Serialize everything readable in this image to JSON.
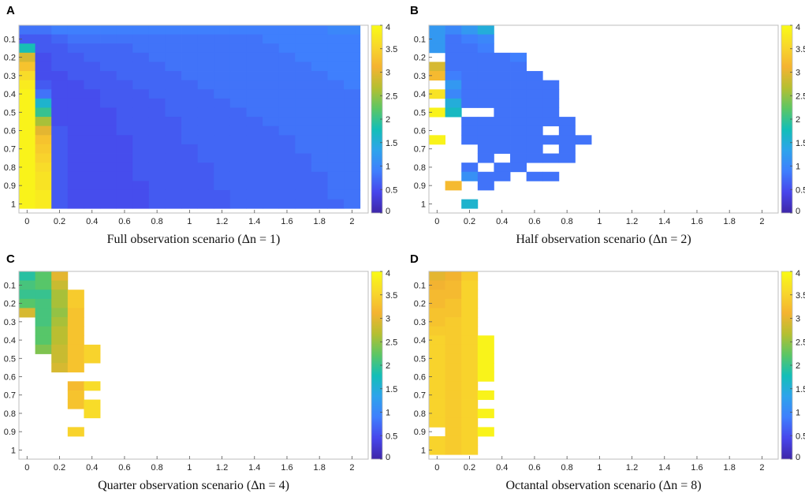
{
  "figure": {
    "colormap": [
      "#3e26a8",
      "#4746eb",
      "#3f7efd",
      "#2ea3ec",
      "#13beb8",
      "#5bc665",
      "#b5bf31",
      "#f4b331",
      "#f8d82b",
      "#f9fb15"
    ],
    "missing_color": "#ffffff"
  },
  "chart_data": [
    {
      "type": "heatmap",
      "panel": "A",
      "caption": "Full observation scenario (Δn = 1)",
      "x_ticks": [
        "0",
        "0.2",
        "0.4",
        "0.6",
        "0.8",
        "1",
        "1.2",
        "1.4",
        "1.6",
        "1.8",
        "2"
      ],
      "y_ticks": [
        "0.1",
        "0.2",
        "0.3",
        "0.4",
        "0.5",
        "0.6",
        "0.7",
        "0.8",
        "0.9",
        "1"
      ],
      "colorbar_ticks": [
        "0",
        "0.5",
        "1",
        "1.5",
        "2",
        "2.5",
        "3",
        "3.5",
        "4"
      ],
      "clim": [
        0,
        4
      ],
      "x_range": [
        -0.05,
        2.1
      ],
      "y_range": [
        0.025,
        1.05
      ],
      "cell_width": 0.1,
      "cell_height": 0.05,
      "x_centers": [
        0,
        0.1,
        0.2,
        0.3,
        0.4,
        0.5,
        0.6,
        0.7,
        0.8,
        0.9,
        1.0,
        1.1,
        1.2,
        1.3,
        1.4,
        1.5,
        1.6,
        1.7,
        1.8,
        1.9,
        2.0
      ],
      "y_centers": [
        0.05,
        0.1,
        0.15,
        0.2,
        0.25,
        0.3,
        0.35,
        0.4,
        0.45,
        0.5,
        0.55,
        0.6,
        0.65,
        0.7,
        0.75,
        0.8,
        0.85,
        0.9,
        0.95,
        1.0
      ],
      "values": [
        [
          0.8,
          0.8,
          0.9,
          0.9,
          0.9,
          0.9,
          0.9,
          0.9,
          0.9,
          0.9,
          0.9,
          0.9,
          0.9,
          0.9,
          0.9,
          0.9,
          0.9,
          0.9,
          0.9,
          1.0,
          1.0
        ],
        [
          0.6,
          0.6,
          0.7,
          0.8,
          0.8,
          0.8,
          0.8,
          0.8,
          0.8,
          0.8,
          0.8,
          0.8,
          0.8,
          0.8,
          0.8,
          0.9,
          0.9,
          0.9,
          0.9,
          0.9,
          0.9
        ],
        [
          1.8,
          0.6,
          0.6,
          0.7,
          0.7,
          0.7,
          0.7,
          0.8,
          0.8,
          0.8,
          0.8,
          0.8,
          0.8,
          0.8,
          0.8,
          0.8,
          0.9,
          0.9,
          0.9,
          0.9,
          0.9
        ],
        [
          2.9,
          0.5,
          0.6,
          0.6,
          0.7,
          0.7,
          0.7,
          0.7,
          0.8,
          0.8,
          0.8,
          0.8,
          0.8,
          0.8,
          0.8,
          0.8,
          0.8,
          0.9,
          0.9,
          0.9,
          0.9
        ],
        [
          3.3,
          0.5,
          0.6,
          0.6,
          0.6,
          0.7,
          0.7,
          0.7,
          0.7,
          0.8,
          0.8,
          0.8,
          0.8,
          0.8,
          0.8,
          0.8,
          0.8,
          0.8,
          0.9,
          0.9,
          0.9
        ],
        [
          3.6,
          0.5,
          0.5,
          0.6,
          0.6,
          0.6,
          0.7,
          0.7,
          0.7,
          0.7,
          0.8,
          0.8,
          0.8,
          0.8,
          0.8,
          0.8,
          0.8,
          0.8,
          0.8,
          0.9,
          0.9
        ],
        [
          3.8,
          0.6,
          0.5,
          0.5,
          0.6,
          0.6,
          0.6,
          0.7,
          0.7,
          0.7,
          0.7,
          0.8,
          0.8,
          0.8,
          0.8,
          0.8,
          0.8,
          0.8,
          0.8,
          0.8,
          0.9
        ],
        [
          3.9,
          0.8,
          0.5,
          0.5,
          0.5,
          0.6,
          0.6,
          0.6,
          0.7,
          0.7,
          0.7,
          0.7,
          0.8,
          0.8,
          0.8,
          0.8,
          0.8,
          0.8,
          0.8,
          0.8,
          0.8
        ],
        [
          3.9,
          1.6,
          0.5,
          0.5,
          0.5,
          0.6,
          0.6,
          0.6,
          0.6,
          0.7,
          0.7,
          0.7,
          0.7,
          0.8,
          0.8,
          0.8,
          0.8,
          0.8,
          0.8,
          0.8,
          0.8
        ],
        [
          3.9,
          2.0,
          0.5,
          0.5,
          0.5,
          0.5,
          0.6,
          0.6,
          0.6,
          0.7,
          0.7,
          0.7,
          0.7,
          0.7,
          0.8,
          0.8,
          0.8,
          0.8,
          0.8,
          0.8,
          0.8
        ],
        [
          3.9,
          2.6,
          0.5,
          0.5,
          0.5,
          0.5,
          0.6,
          0.6,
          0.6,
          0.6,
          0.7,
          0.7,
          0.7,
          0.7,
          0.7,
          0.8,
          0.8,
          0.8,
          0.8,
          0.8,
          0.8
        ],
        [
          3.9,
          3.0,
          0.6,
          0.5,
          0.5,
          0.5,
          0.6,
          0.6,
          0.6,
          0.6,
          0.7,
          0.7,
          0.7,
          0.7,
          0.7,
          0.7,
          0.8,
          0.8,
          0.8,
          0.8,
          0.8
        ],
        [
          3.9,
          3.3,
          0.6,
          0.5,
          0.5,
          0.5,
          0.5,
          0.6,
          0.6,
          0.6,
          0.7,
          0.7,
          0.7,
          0.7,
          0.7,
          0.7,
          0.7,
          0.8,
          0.8,
          0.8,
          0.8
        ],
        [
          3.9,
          3.4,
          0.6,
          0.5,
          0.5,
          0.5,
          0.5,
          0.6,
          0.6,
          0.6,
          0.6,
          0.7,
          0.7,
          0.7,
          0.7,
          0.7,
          0.7,
          0.8,
          0.8,
          0.8,
          0.8
        ],
        [
          3.9,
          3.5,
          0.6,
          0.5,
          0.5,
          0.5,
          0.5,
          0.6,
          0.6,
          0.6,
          0.6,
          0.7,
          0.7,
          0.7,
          0.7,
          0.7,
          0.7,
          0.7,
          0.8,
          0.8,
          0.8
        ],
        [
          3.9,
          3.6,
          0.6,
          0.5,
          0.5,
          0.5,
          0.5,
          0.6,
          0.6,
          0.6,
          0.6,
          0.6,
          0.7,
          0.7,
          0.7,
          0.7,
          0.7,
          0.7,
          0.8,
          0.8,
          0.8
        ],
        [
          3.9,
          3.7,
          0.6,
          0.5,
          0.5,
          0.5,
          0.5,
          0.6,
          0.6,
          0.6,
          0.6,
          0.6,
          0.7,
          0.7,
          0.7,
          0.7,
          0.7,
          0.7,
          0.7,
          0.8,
          0.8
        ],
        [
          3.9,
          3.7,
          0.6,
          0.5,
          0.5,
          0.5,
          0.5,
          0.5,
          0.6,
          0.6,
          0.6,
          0.6,
          0.7,
          0.7,
          0.7,
          0.7,
          0.7,
          0.7,
          0.7,
          0.8,
          0.8
        ],
        [
          3.9,
          3.8,
          0.6,
          0.5,
          0.5,
          0.5,
          0.5,
          0.5,
          0.6,
          0.6,
          0.6,
          0.6,
          0.6,
          0.7,
          0.7,
          0.7,
          0.7,
          0.7,
          0.7,
          0.8,
          0.8
        ],
        [
          3.9,
          3.8,
          0.6,
          0.5,
          0.5,
          0.5,
          0.5,
          0.5,
          0.6,
          0.6,
          0.6,
          0.6,
          0.6,
          0.7,
          0.7,
          0.7,
          0.7,
          0.7,
          0.7,
          0.7,
          0.8
        ]
      ]
    },
    {
      "type": "heatmap",
      "panel": "B",
      "caption": "Half observation scenario (Δn = 2)",
      "x_ticks": [
        "0",
        "0.2",
        "0.4",
        "0.6",
        "0.8",
        "1",
        "1.2",
        "1.4",
        "1.6",
        "1.8",
        "2"
      ],
      "y_ticks": [
        "0.1",
        "0.2",
        "0.3",
        "0.4",
        "0.5",
        "0.6",
        "0.7",
        "0.8",
        "0.9",
        "1"
      ],
      "colorbar_ticks": [
        "0",
        "0.5",
        "1",
        "1.5",
        "2",
        "2.5",
        "3",
        "3.5",
        "4"
      ],
      "clim": [
        0,
        4
      ],
      "x_range": [
        -0.05,
        2.1
      ],
      "y_range": [
        0.025,
        1.05
      ],
      "cell_width": 0.1,
      "cell_height": 0.05,
      "x_centers": [
        0,
        0.1,
        0.2,
        0.3,
        0.4,
        0.5,
        0.6,
        0.7,
        0.8,
        0.9
      ],
      "y_centers": [
        0.05,
        0.1,
        0.15,
        0.2,
        0.25,
        0.3,
        0.35,
        0.4,
        0.45,
        0.5,
        0.55,
        0.6,
        0.65,
        0.7,
        0.75,
        0.8,
        0.85,
        0.9,
        0.95,
        1.0
      ],
      "values": [
        [
          1.2,
          1.0,
          1.2,
          1.5,
          null,
          null,
          null,
          null,
          null,
          null
        ],
        [
          1.2,
          0.8,
          0.9,
          1.0,
          null,
          null,
          null,
          null,
          null,
          null
        ],
        [
          1.2,
          0.8,
          0.8,
          0.9,
          null,
          null,
          null,
          null,
          null,
          null
        ],
        [
          null,
          0.8,
          0.8,
          0.8,
          0.8,
          0.9,
          null,
          null,
          null,
          null
        ],
        [
          2.9,
          0.8,
          0.8,
          0.8,
          0.8,
          0.8,
          null,
          null,
          null,
          null
        ],
        [
          3.2,
          0.9,
          0.8,
          0.8,
          0.8,
          0.8,
          0.8,
          null,
          null,
          null
        ],
        [
          null,
          1.2,
          0.8,
          0.8,
          0.8,
          0.8,
          0.8,
          0.8,
          null,
          null
        ],
        [
          3.7,
          1.0,
          0.8,
          0.8,
          0.8,
          0.8,
          0.8,
          0.8,
          null,
          null
        ],
        [
          null,
          1.5,
          0.8,
          0.8,
          0.8,
          0.8,
          0.8,
          0.8,
          null,
          null
        ],
        [
          3.9,
          1.7,
          null,
          null,
          0.8,
          0.8,
          0.8,
          0.8,
          null,
          null
        ],
        [
          null,
          null,
          0.8,
          0.8,
          0.8,
          0.8,
          0.8,
          0.8,
          0.8,
          null
        ],
        [
          null,
          null,
          0.8,
          0.8,
          0.8,
          0.8,
          0.8,
          null,
          0.8,
          null
        ],
        [
          3.9,
          null,
          0.8,
          0.8,
          0.8,
          0.8,
          0.8,
          0.8,
          0.8,
          0.8
        ],
        [
          null,
          null,
          null,
          0.8,
          0.8,
          0.8,
          0.8,
          null,
          0.8,
          null
        ],
        [
          null,
          null,
          null,
          0.8,
          null,
          0.8,
          0.8,
          0.8,
          0.8,
          null
        ],
        [
          null,
          null,
          0.8,
          null,
          0.8,
          0.8,
          null,
          null,
          null,
          null
        ],
        [
          null,
          null,
          1.1,
          0.8,
          0.8,
          null,
          0.8,
          0.8,
          null,
          null
        ],
        [
          null,
          3.2,
          null,
          0.8,
          null,
          null,
          null,
          null,
          null,
          null
        ],
        [
          null,
          null,
          null,
          null,
          null,
          null,
          null,
          null,
          null,
          null
        ],
        [
          null,
          null,
          1.6,
          null,
          null,
          null,
          null,
          null,
          null,
          null
        ]
      ]
    },
    {
      "type": "heatmap",
      "panel": "C",
      "caption": "Quarter observation scenario (Δn = 4)",
      "x_ticks": [
        "0",
        "0.2",
        "0.4",
        "0.6",
        "0.8",
        "1",
        "1.2",
        "1.4",
        "1.6",
        "1.8",
        "2"
      ],
      "y_ticks": [
        "0.1",
        "0.2",
        "0.3",
        "0.4",
        "0.5",
        "0.6",
        "0.7",
        "0.8",
        "0.9",
        "1"
      ],
      "colorbar_ticks": [
        "0",
        "0.5",
        "1",
        "1.5",
        "2",
        "2.5",
        "3",
        "3.5",
        "4"
      ],
      "clim": [
        0,
        4
      ],
      "x_range": [
        -0.05,
        2.1
      ],
      "y_range": [
        0.025,
        1.05
      ],
      "cell_width": 0.1,
      "cell_height": 0.05,
      "x_centers": [
        0,
        0.1,
        0.2,
        0.3,
        0.4
      ],
      "y_centers": [
        0.05,
        0.1,
        0.15,
        0.2,
        0.25,
        0.3,
        0.35,
        0.4,
        0.45,
        0.5,
        0.55,
        0.6,
        0.65,
        0.7,
        0.75,
        0.8,
        0.85,
        0.9,
        0.95,
        1.0
      ],
      "values": [
        [
          1.9,
          2.2,
          3.0,
          null,
          null
        ],
        [
          2.1,
          2.2,
          2.8,
          null,
          null
        ],
        [
          2.0,
          2.0,
          2.6,
          3.4,
          null
        ],
        [
          2.2,
          2.1,
          2.6,
          3.4,
          null
        ],
        [
          2.9,
          2.1,
          2.5,
          3.3,
          null
        ],
        [
          null,
          2.1,
          2.6,
          3.3,
          null
        ],
        [
          null,
          2.2,
          2.7,
          3.3,
          null
        ],
        [
          null,
          2.2,
          2.7,
          3.3,
          null
        ],
        [
          null,
          2.4,
          2.8,
          3.3,
          3.5
        ],
        [
          null,
          null,
          2.8,
          3.3,
          3.5
        ],
        [
          null,
          null,
          2.9,
          3.3,
          null
        ],
        [
          null,
          null,
          null,
          null,
          null
        ],
        [
          null,
          null,
          null,
          3.2,
          3.6
        ],
        [
          null,
          null,
          null,
          3.3,
          null
        ],
        [
          null,
          null,
          null,
          3.3,
          3.6
        ],
        [
          null,
          null,
          null,
          null,
          3.6
        ],
        [
          null,
          null,
          null,
          null,
          null
        ],
        [
          null,
          null,
          null,
          3.5,
          null
        ],
        [
          null,
          null,
          null,
          null,
          null
        ],
        [
          null,
          null,
          null,
          null,
          null
        ]
      ]
    },
    {
      "type": "heatmap",
      "panel": "D",
      "caption": "Octantal observation scenario (Δn = 8)",
      "x_ticks": [
        "0",
        "0.2",
        "0.4",
        "0.6",
        "0.8",
        "1",
        "1.2",
        "1.4",
        "1.6",
        "1.8",
        "2"
      ],
      "y_ticks": [
        "0.1",
        "0.2",
        "0.3",
        "0.4",
        "0.5",
        "0.6",
        "0.7",
        "0.8",
        "0.9",
        "1"
      ],
      "colorbar_ticks": [
        "0",
        "0.5",
        "1",
        "1.5",
        "2",
        "2.5",
        "3",
        "3.5",
        "4"
      ],
      "clim": [
        0,
        4
      ],
      "x_range": [
        -0.05,
        2.1
      ],
      "y_range": [
        0.025,
        1.05
      ],
      "cell_width": 0.1,
      "cell_height": 0.05,
      "x_centers": [
        0,
        0.1,
        0.2,
        0.3
      ],
      "y_centers": [
        0.05,
        0.1,
        0.15,
        0.2,
        0.25,
        0.3,
        0.35,
        0.4,
        0.45,
        0.5,
        0.55,
        0.6,
        0.65,
        0.7,
        0.75,
        0.8,
        0.85,
        0.9,
        0.95,
        1.0
      ],
      "values": [
        [
          3.0,
          3.1,
          3.4,
          null
        ],
        [
          3.1,
          3.2,
          3.5,
          null
        ],
        [
          3.2,
          3.2,
          3.5,
          null
        ],
        [
          3.2,
          3.3,
          3.5,
          null
        ],
        [
          3.3,
          3.3,
          3.5,
          null
        ],
        [
          3.3,
          3.4,
          3.5,
          null
        ],
        [
          3.4,
          3.4,
          3.5,
          null
        ],
        [
          3.5,
          3.4,
          3.5,
          3.9
        ],
        [
          3.5,
          3.4,
          3.5,
          3.9
        ],
        [
          3.5,
          3.4,
          3.5,
          3.9
        ],
        [
          3.5,
          3.4,
          3.5,
          3.9
        ],
        [
          3.5,
          3.4,
          3.5,
          3.9
        ],
        [
          3.5,
          3.4,
          3.5,
          null
        ],
        [
          3.5,
          3.4,
          3.5,
          3.9
        ],
        [
          3.5,
          3.4,
          3.5,
          null
        ],
        [
          3.5,
          3.4,
          3.5,
          3.9
        ],
        [
          3.5,
          3.4,
          3.5,
          null
        ],
        [
          null,
          3.4,
          3.5,
          3.9
        ],
        [
          3.5,
          3.4,
          3.5,
          null
        ],
        [
          3.5,
          3.4,
          3.5,
          null
        ]
      ]
    }
  ]
}
